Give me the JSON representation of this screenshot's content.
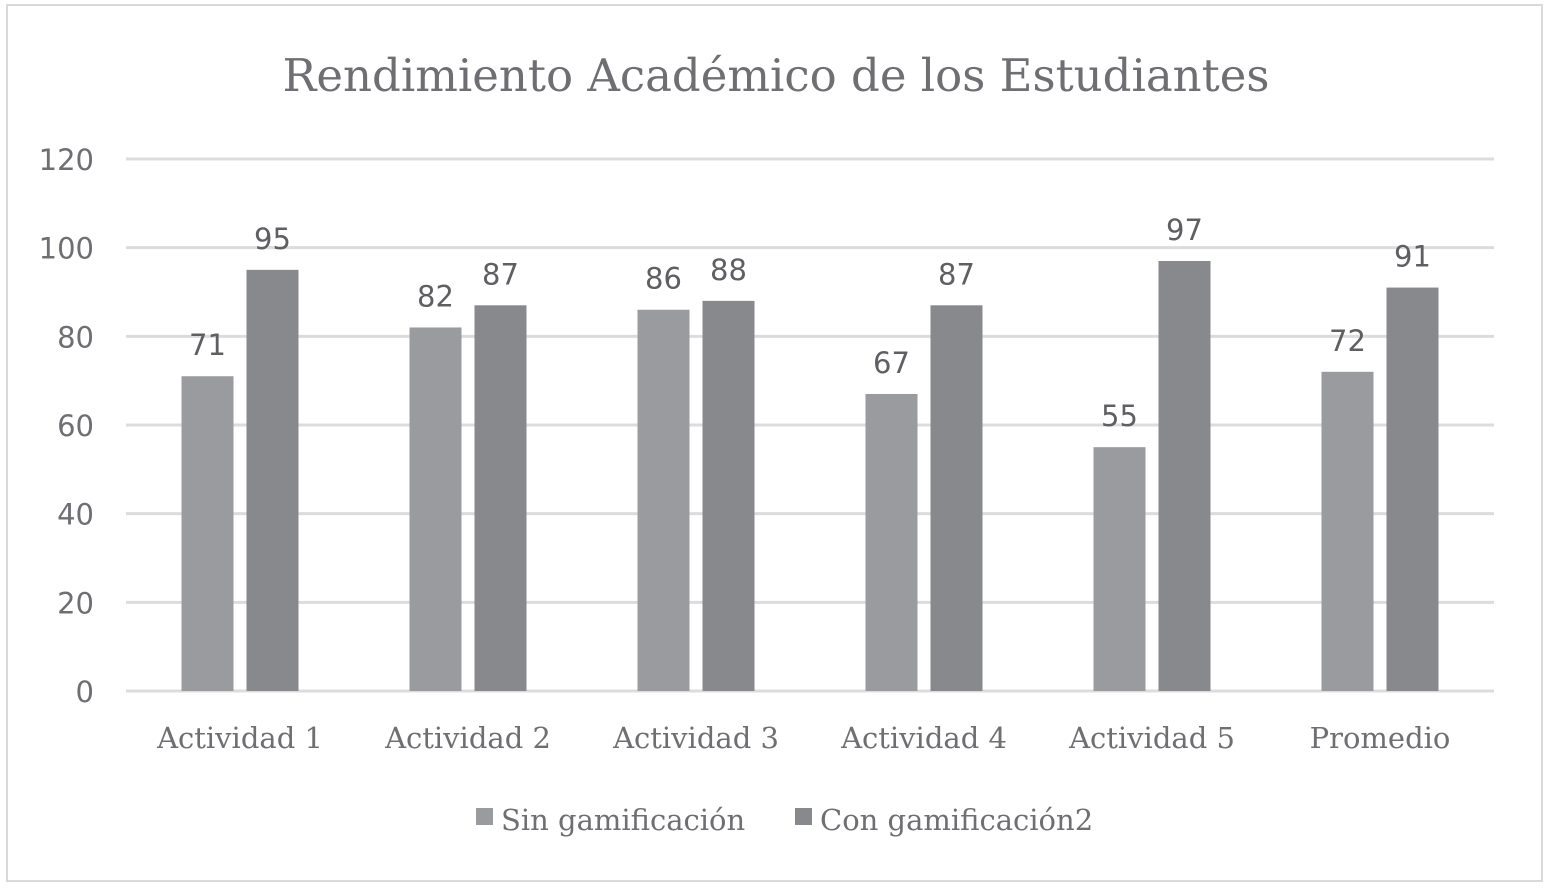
{
  "chart_data": {
    "type": "bar",
    "title": "Rendimiento Académico de los Estudiantes",
    "xlabel": "",
    "ylabel": "",
    "ylim": [
      0,
      120
    ],
    "yticks": [
      0,
      20,
      40,
      60,
      80,
      100,
      120
    ],
    "grid": true,
    "legend_position": "bottom",
    "categories": [
      "Actividad 1",
      "Actividad 2",
      "Actividad 3",
      "Actividad 4",
      "Actividad 5",
      "Promedio"
    ],
    "series": [
      {
        "name": "Sin gamificación",
        "values": [
          71,
          82,
          86,
          67,
          55,
          72
        ],
        "color": "#9a9b9f"
      },
      {
        "name": "Con gamificación2",
        "values": [
          95,
          87,
          88,
          87,
          97,
          91
        ],
        "color": "#88898d"
      }
    ],
    "gridline_color": "#dcdcdc",
    "text_color": "#6f6f73"
  }
}
